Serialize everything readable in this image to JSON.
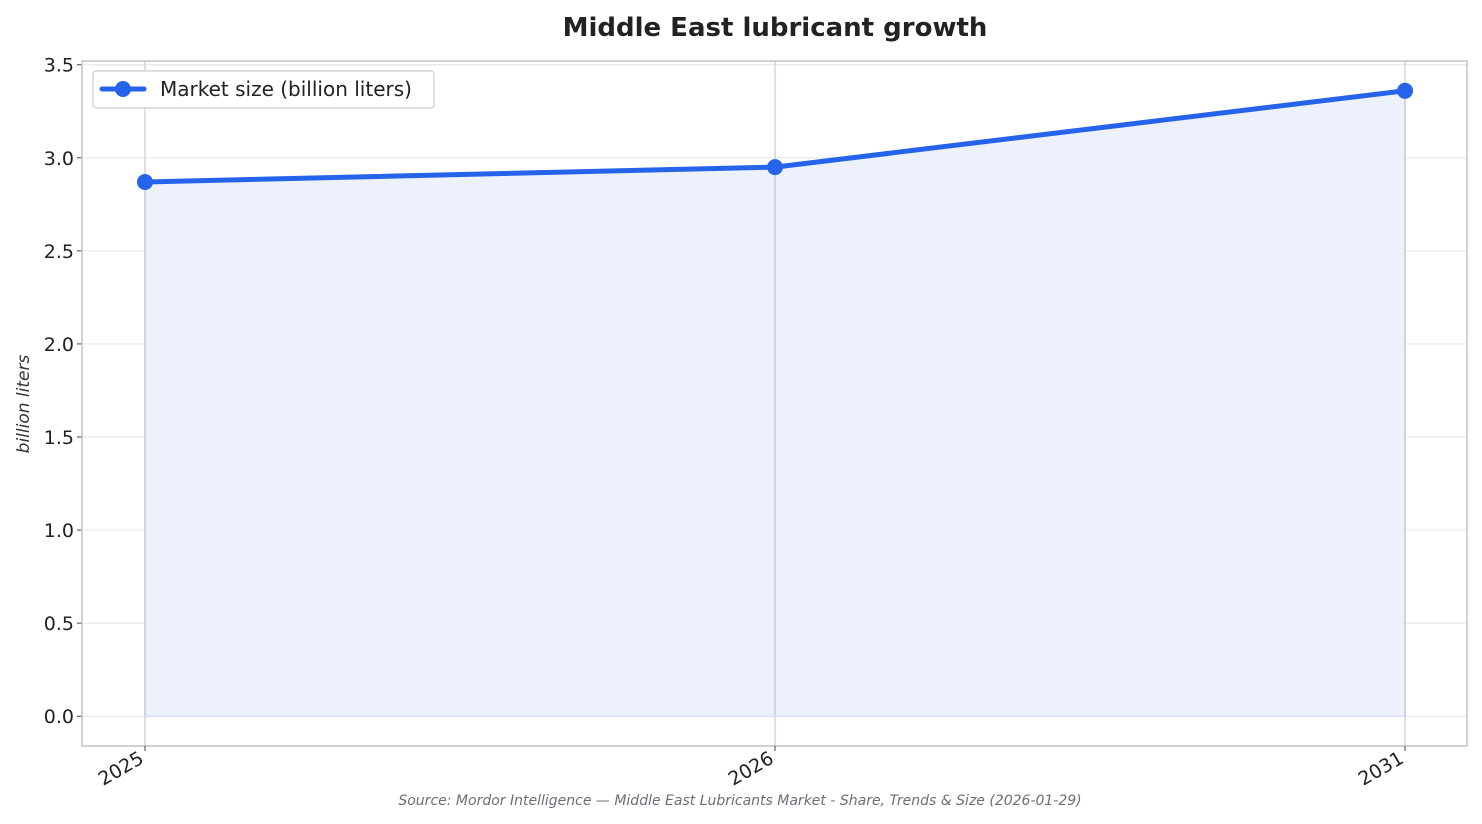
{
  "chart_data": {
    "type": "area",
    "title": "Middle East lubricant growth",
    "ylabel": "billion liters",
    "xlabel": "",
    "categories": [
      "2025",
      "2026",
      "2031"
    ],
    "x": [
      2025,
      2026,
      2031
    ],
    "series": [
      {
        "name": "Market size (billion liters)",
        "values": [
          2.87,
          2.95,
          3.36
        ]
      }
    ],
    "ylim": [
      -0.16,
      3.52
    ],
    "yticks": [
      "0.0",
      "0.5",
      "1.0",
      "1.5",
      "2.0",
      "2.5",
      "3.0",
      "3.5"
    ],
    "ytick_values": [
      0.0,
      0.5,
      1.0,
      1.5,
      2.0,
      2.5,
      3.0,
      3.5
    ],
    "grid": true,
    "legend_position": "top-left",
    "source": "Source: Mordor Intelligence — Middle East Lubricants Market - Share, Trends & Size (2026-01-29)",
    "colors": {
      "line": "#2563eb",
      "fill": "#ecf1fc",
      "grid": "#e6e8ec",
      "vline": "#c8ccd6",
      "frame": "#c4c4c4"
    }
  }
}
